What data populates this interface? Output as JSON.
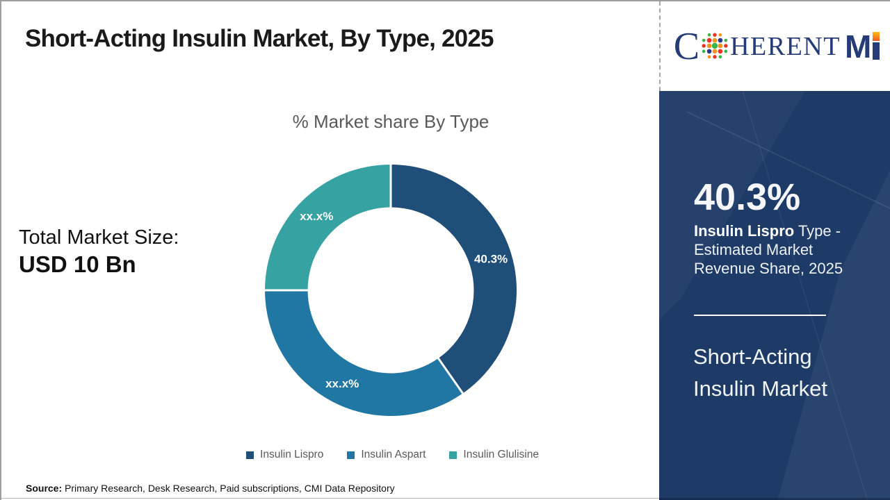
{
  "title": "Short-Acting Insulin Market, By Type, 2025",
  "logo": {
    "c": "C",
    "herent": "HERENT",
    "m": "M"
  },
  "left_stat": {
    "label": "Total Market Size:",
    "value": "USD 10 Bn"
  },
  "chart_data": {
    "type": "pie",
    "subtype": "donut",
    "title": "% Market share By Type",
    "categories": [
      "Insulin Lispro",
      "Insulin Aspart",
      "Insulin Glulisine"
    ],
    "values": [
      40.3,
      34.7,
      25.0
    ],
    "slice_labels": [
      "40.3%",
      "xx.x%",
      "xx.x%"
    ],
    "colors": [
      "#1f4e79",
      "#2077a3",
      "#36a2a2"
    ],
    "start_angle_deg": 0,
    "donut_hole_ratio": 0.66,
    "legend_position": "bottom"
  },
  "panel": {
    "stat_value": "40.3%",
    "stat_label_bold": "Insulin Lispro",
    "stat_label_rest": " Type - Estimated Market Revenue Share, 2025",
    "market_name": "Short-Acting Insulin Market"
  },
  "source": {
    "label": "Source:",
    "text": " Primary Research, Desk Research, Paid subscriptions, CMI Data Repository"
  }
}
